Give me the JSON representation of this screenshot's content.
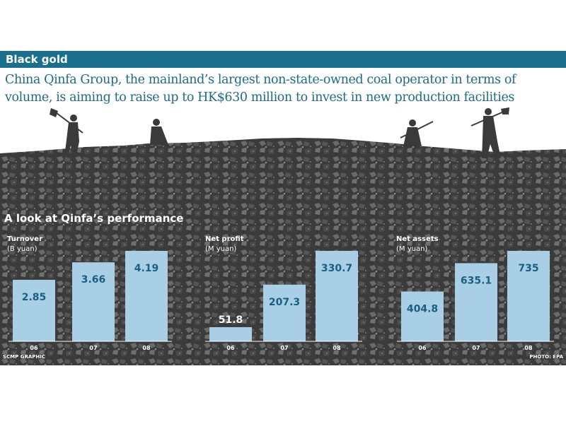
{
  "header": {
    "title": "Black gold"
  },
  "subtitle": "China Qinfa Group, the mainland’s largest non-state-owned coal operator in terms of volume, is aiming to raise up to HK$630 million to invest in new production facilities",
  "section_title": "A look at Qinfa’s performance",
  "colors": {
    "header_bar": "#1a6f8f",
    "bar_fill": "#a9cfe6",
    "value_text": "#1a5f80",
    "coal": "#3a3a3a"
  },
  "chart_data": [
    {
      "type": "bar",
      "title": "Turnover",
      "unit": "(B yuan)",
      "categories": [
        "06",
        "07",
        "08"
      ],
      "values": [
        2.85,
        3.66,
        4.19
      ],
      "labels": [
        "2.85",
        "3.66",
        "4.19"
      ]
    },
    {
      "type": "bar",
      "title": "Net profit",
      "unit": "(M yuan)",
      "categories": [
        "06",
        "07",
        "08"
      ],
      "values": [
        51.8,
        207.3,
        330.7
      ],
      "labels": [
        "51.8",
        "207.3",
        "330.7"
      ]
    },
    {
      "type": "bar",
      "title": "Net assets",
      "unit": "(M yuan)",
      "categories": [
        "06",
        "07",
        "08"
      ],
      "values": [
        404.8,
        635.1,
        735
      ],
      "labels": [
        "404.8",
        "635.1",
        "735"
      ]
    }
  ],
  "footer": {
    "left": "SCMP GRAPHIC",
    "right": "PHOTO: EPA"
  }
}
